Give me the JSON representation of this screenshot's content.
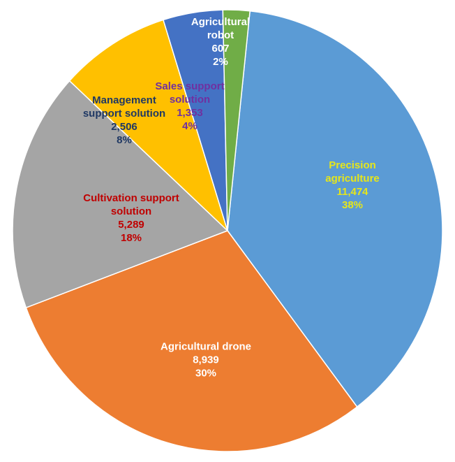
{
  "chart_data": {
    "type": "pie",
    "categories": [
      "Precision agriculture",
      "Agricultural drone",
      "Cultivation support solution",
      "Management support solution",
      "Sales support solution",
      "Agricultural robot"
    ],
    "values": [
      11474,
      8939,
      5289,
      2506,
      1353,
      607
    ],
    "value_labels": [
      "11,474",
      "8,939",
      "5,289",
      "2,506",
      "1,353",
      "607"
    ],
    "percents": [
      38,
      30,
      18,
      8,
      4,
      2
    ],
    "percent_labels": [
      "38%",
      "30%",
      "18%",
      "8%",
      "4%",
      "2%"
    ],
    "colors": [
      "#5b9bd5",
      "#ed7d31",
      "#a5a5a5",
      "#ffc000",
      "#4472c4",
      "#70ad47"
    ],
    "label_colors": [
      "#e6e61a",
      "#ffffff",
      "#c00000",
      "#1f3864",
      "#7030a0",
      "#ffffff"
    ]
  }
}
